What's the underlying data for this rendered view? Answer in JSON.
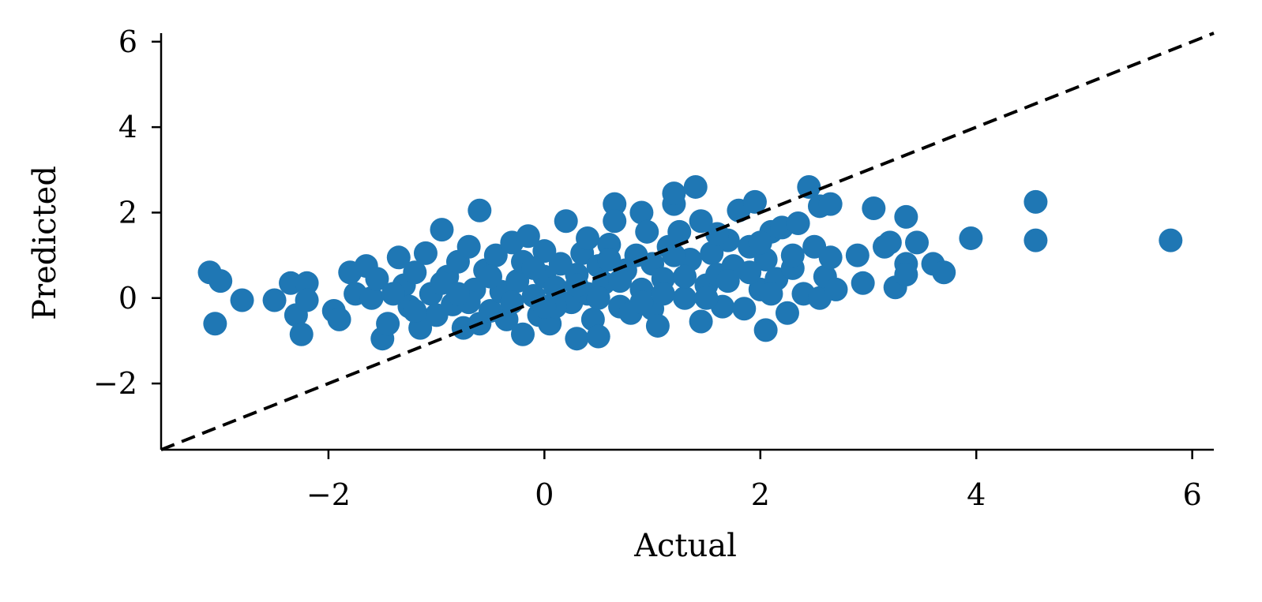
{
  "chart_data": {
    "type": "scatter",
    "title": "",
    "xlabel": "Actual",
    "ylabel": "Predicted",
    "xlim": [
      -3.55,
      6.2
    ],
    "ylim": [
      -3.55,
      6.2
    ],
    "xticks": [
      -2,
      0,
      2,
      4,
      6
    ],
    "yticks": [
      -2,
      0,
      2,
      4,
      6
    ],
    "xtick_labels": [
      "−2",
      "0",
      "2",
      "4",
      "6"
    ],
    "ytick_labels": [
      "−2",
      "0",
      "2",
      "4",
      "6"
    ],
    "grid": false,
    "reference_line": {
      "style": "dashed",
      "color": "#000000",
      "from": [
        -3.55,
        -3.55
      ],
      "to": [
        6.2,
        6.2
      ]
    },
    "marker_color": "#1f77b4",
    "series": [
      {
        "points": [
          [
            -3.1,
            0.6
          ],
          [
            -3.0,
            0.4
          ],
          [
            -3.05,
            -0.6
          ],
          [
            -2.8,
            -0.05
          ],
          [
            -2.5,
            -0.05
          ],
          [
            -2.35,
            0.35
          ],
          [
            -2.3,
            -0.4
          ],
          [
            -2.2,
            0.35
          ],
          [
            -2.25,
            -0.85
          ],
          [
            -2.2,
            -0.05
          ],
          [
            -1.95,
            -0.3
          ],
          [
            -1.9,
            -0.5
          ],
          [
            -1.8,
            0.6
          ],
          [
            -1.75,
            0.1
          ],
          [
            -1.65,
            0.75
          ],
          [
            -1.6,
            0.0
          ],
          [
            -1.55,
            0.45
          ],
          [
            -1.5,
            -0.95
          ],
          [
            -1.45,
            -0.6
          ],
          [
            -1.35,
            0.95
          ],
          [
            -1.3,
            0.3
          ],
          [
            -1.25,
            -0.2
          ],
          [
            -1.2,
            0.6
          ],
          [
            -1.15,
            -0.7
          ],
          [
            -1.1,
            1.05
          ],
          [
            -1.05,
            0.1
          ],
          [
            -1.0,
            -0.4
          ],
          [
            -0.95,
            1.6
          ],
          [
            -0.9,
            0.5
          ],
          [
            -0.85,
            -0.15
          ],
          [
            -0.8,
            0.85
          ],
          [
            -0.75,
            -0.7
          ],
          [
            -0.7,
            1.2
          ],
          [
            -0.65,
            0.2
          ],
          [
            -0.6,
            2.05
          ],
          [
            -0.6,
            -0.6
          ],
          [
            -0.55,
            0.65
          ],
          [
            -0.5,
            -0.3
          ],
          [
            -0.45,
            1.0
          ],
          [
            -0.4,
            0.15
          ],
          [
            -0.35,
            -0.5
          ],
          [
            -0.3,
            1.3
          ],
          [
            -0.25,
            0.4
          ],
          [
            -0.2,
            -0.85
          ],
          [
            -0.2,
            0.85
          ],
          [
            -0.15,
            1.45
          ],
          [
            -0.1,
            0.05
          ],
          [
            -0.05,
            -0.4
          ],
          [
            0.0,
            1.1
          ],
          [
            0.0,
            0.5
          ],
          [
            0.05,
            -0.6
          ],
          [
            0.1,
            0.25
          ],
          [
            0.15,
            0.8
          ],
          [
            0.2,
            1.8
          ],
          [
            0.25,
            -0.1
          ],
          [
            0.3,
            0.55
          ],
          [
            0.3,
            -0.95
          ],
          [
            0.35,
            1.05
          ],
          [
            0.4,
            0.1
          ],
          [
            0.4,
            1.4
          ],
          [
            0.45,
            -0.5
          ],
          [
            0.5,
            0.75
          ],
          [
            0.5,
            -0.9
          ],
          [
            0.55,
            0.35
          ],
          [
            0.6,
            1.25
          ],
          [
            0.65,
            2.2
          ],
          [
            0.65,
            1.8
          ],
          [
            0.7,
            -0.2
          ],
          [
            0.75,
            0.65
          ],
          [
            0.8,
            -0.35
          ],
          [
            0.85,
            1.0
          ],
          [
            0.9,
            2.0
          ],
          [
            0.9,
            0.2
          ],
          [
            0.95,
            1.55
          ],
          [
            1.0,
            -0.25
          ],
          [
            1.0,
            0.8
          ],
          [
            1.05,
            -0.65
          ],
          [
            1.1,
            0.45
          ],
          [
            1.15,
            1.2
          ],
          [
            1.2,
            2.2
          ],
          [
            1.2,
            2.45
          ],
          [
            1.25,
            1.55
          ],
          [
            1.3,
            0.0
          ],
          [
            1.35,
            0.9
          ],
          [
            1.4,
            2.6
          ],
          [
            1.45,
            -0.55
          ],
          [
            1.45,
            1.8
          ],
          [
            1.5,
            0.3
          ],
          [
            1.55,
            1.05
          ],
          [
            1.6,
            0.55
          ],
          [
            1.65,
            -0.2
          ],
          [
            1.7,
            1.35
          ],
          [
            1.75,
            0.75
          ],
          [
            1.8,
            2.05
          ],
          [
            1.85,
            -0.25
          ],
          [
            1.9,
            1.2
          ],
          [
            1.95,
            2.25
          ],
          [
            2.0,
            0.2
          ],
          [
            2.05,
            0.9
          ],
          [
            2.05,
            -0.75
          ],
          [
            2.1,
            1.55
          ],
          [
            2.15,
            0.45
          ],
          [
            2.2,
            1.65
          ],
          [
            2.25,
            -0.35
          ],
          [
            2.3,
            0.7
          ],
          [
            2.35,
            1.75
          ],
          [
            2.4,
            0.1
          ],
          [
            2.45,
            2.6
          ],
          [
            2.5,
            1.2
          ],
          [
            2.55,
            2.15
          ],
          [
            2.55,
            0.0
          ],
          [
            2.6,
            0.5
          ],
          [
            2.65,
            2.2
          ],
          [
            2.65,
            0.95
          ],
          [
            2.7,
            0.2
          ],
          [
            2.9,
            1.0
          ],
          [
            2.95,
            0.35
          ],
          [
            3.05,
            2.1
          ],
          [
            3.15,
            1.2
          ],
          [
            3.2,
            1.3
          ],
          [
            3.25,
            0.25
          ],
          [
            3.35,
            1.9
          ],
          [
            3.35,
            0.8
          ],
          [
            3.35,
            0.55
          ],
          [
            3.45,
            1.3
          ],
          [
            3.6,
            0.8
          ],
          [
            3.7,
            0.6
          ],
          [
            3.95,
            1.4
          ],
          [
            4.55,
            2.25
          ],
          [
            4.55,
            1.35
          ],
          [
            5.8,
            1.35
          ],
          [
            -1.4,
            0.1
          ],
          [
            -1.2,
            -0.3
          ],
          [
            -0.95,
            0.35
          ],
          [
            -0.7,
            -0.1
          ],
          [
            -0.5,
            0.5
          ],
          [
            -0.3,
            -0.1
          ],
          [
            -0.1,
            0.7
          ],
          [
            0.1,
            -0.2
          ],
          [
            0.3,
            0.3
          ],
          [
            0.5,
            0.0
          ],
          [
            0.7,
            0.4
          ],
          [
            0.9,
            -0.1
          ],
          [
            1.1,
            0.1
          ],
          [
            1.3,
            0.5
          ],
          [
            1.5,
            0.0
          ],
          [
            1.7,
            0.4
          ],
          [
            1.9,
            0.6
          ],
          [
            2.1,
            0.1
          ],
          [
            2.3,
            1.0
          ],
          [
            1.2,
            1.0
          ],
          [
            0.6,
            0.9
          ],
          [
            0.0,
            -0.2
          ],
          [
            -0.8,
            0.1
          ],
          [
            1.6,
            1.5
          ],
          [
            2.0,
            1.3
          ]
        ]
      }
    ]
  }
}
